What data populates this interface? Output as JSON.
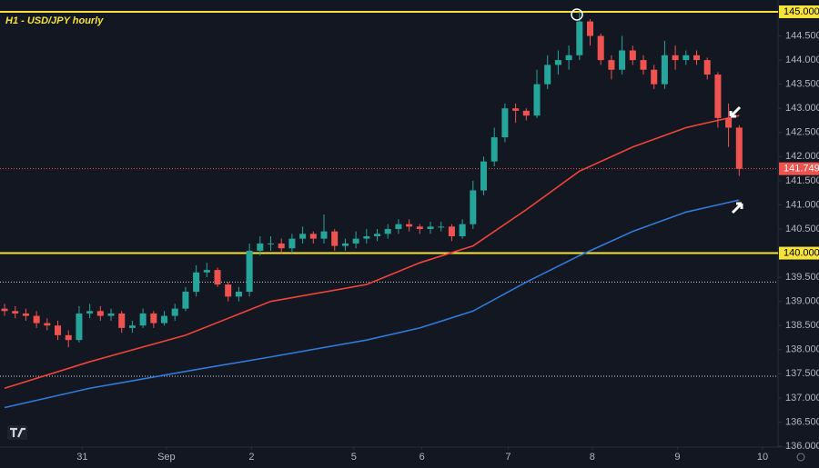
{
  "chart_data": {
    "type": "candlestick",
    "title": "H1 - USD/JPY hourly",
    "colors": {
      "up": "#26a69a",
      "down": "#ef5350",
      "background": "#131722",
      "axis_text": "#b2b5be"
    },
    "xlim": [
      -0.43,
      72.65
    ],
    "xticks": [
      {
        "value": 7.3,
        "label": "31"
      },
      {
        "value": 15.2,
        "label": "Sep"
      },
      {
        "value": 23.2,
        "label": "2"
      },
      {
        "value": 32.8,
        "label": "5"
      },
      {
        "value": 39.2,
        "label": "6"
      },
      {
        "value": 47.3,
        "label": "7"
      },
      {
        "value": 55.2,
        "label": "8"
      },
      {
        "value": 63.2,
        "label": "9"
      },
      {
        "value": 71.2,
        "label": "10"
      }
    ],
    "ylim": [
      136,
      145
    ],
    "yticks": [
      {
        "value": 136,
        "label": "136.000"
      },
      {
        "value": 136.5,
        "label": "136.500"
      },
      {
        "value": 137,
        "label": "137.000"
      },
      {
        "value": 137.5,
        "label": "137.500"
      },
      {
        "value": 138,
        "label": "138.000"
      },
      {
        "value": 138.5,
        "label": "138.500"
      },
      {
        "value": 139,
        "label": "139.000"
      },
      {
        "value": 139.5,
        "label": "139.500"
      },
      {
        "value": 140,
        "label": "140.000"
      },
      {
        "value": 140.5,
        "label": "140.500"
      },
      {
        "value": 141,
        "label": "141.000"
      },
      {
        "value": 141.5,
        "label": "141.500"
      },
      {
        "value": 142,
        "label": "142.000"
      },
      {
        "value": 142.5,
        "label": "142.500"
      },
      {
        "value": 143,
        "label": "143.000"
      },
      {
        "value": 143.5,
        "label": "143.500"
      },
      {
        "value": 144,
        "label": "144.000"
      },
      {
        "value": 144.5,
        "label": "144.500"
      },
      {
        "value": 145,
        "label": "145.000"
      }
    ],
    "open": [
      138.85,
      138.8,
      138.75,
      138.7,
      138.55,
      138.5,
      138.3,
      138.2,
      138.75,
      138.8,
      138.7,
      138.75,
      138.45,
      138.5,
      138.75,
      138.55,
      138.7,
      138.85,
      139.2,
      139.6,
      139.65,
      139.35,
      139.1,
      139.2,
      140.05,
      140.2,
      140.2,
      140.1,
      140.3,
      140.4,
      140.3,
      140.45,
      140.15,
      140.2,
      140.3,
      140.35,
      140.4,
      140.5,
      140.6,
      140.55,
      140.5,
      140.55,
      140.55,
      140.35,
      140.6,
      141.3,
      141.9,
      142.4,
      143.0,
      142.95,
      142.85,
      143.5,
      143.9,
      144.0,
      144.1,
      144.8,
      144.5,
      144.0,
      143.8,
      144.2,
      144.0,
      143.8,
      143.5,
      144.1,
      144.0,
      144.1,
      144.0,
      143.7,
      142.8,
      142.6
    ],
    "high": [
      138.95,
      138.9,
      138.85,
      138.8,
      138.65,
      138.6,
      138.4,
      138.9,
      138.95,
      138.9,
      138.85,
      138.8,
      138.6,
      138.85,
      138.8,
      138.8,
      138.95,
      139.3,
      139.75,
      139.8,
      139.7,
      139.4,
      139.3,
      140.2,
      140.35,
      140.35,
      140.3,
      140.4,
      140.55,
      140.45,
      140.8,
      140.5,
      140.3,
      140.45,
      140.5,
      140.5,
      140.6,
      140.7,
      140.7,
      140.6,
      140.65,
      140.65,
      140.6,
      140.7,
      141.5,
      142.0,
      142.6,
      143.1,
      143.1,
      143.0,
      143.8,
      144.1,
      144.2,
      144.3,
      145.0,
      144.85,
      144.55,
      144.1,
      144.5,
      144.3,
      144.1,
      143.9,
      144.4,
      144.3,
      144.2,
      144.2,
      144.05,
      143.75,
      143.1,
      142.65
    ],
    "low": [
      138.7,
      138.65,
      138.6,
      138.45,
      138.4,
      138.2,
      138.05,
      138.15,
      138.65,
      138.6,
      138.6,
      138.35,
      138.35,
      138.45,
      138.45,
      138.5,
      138.6,
      138.8,
      139.1,
      139.5,
      139.3,
      139.0,
      139.0,
      139.1,
      139.95,
      140.05,
      140.0,
      140.0,
      140.2,
      140.2,
      140.2,
      140.05,
      140.05,
      140.1,
      140.2,
      140.25,
      140.3,
      140.4,
      140.45,
      140.4,
      140.4,
      140.45,
      140.25,
      140.3,
      140.5,
      141.2,
      141.8,
      142.3,
      142.7,
      142.75,
      142.8,
      143.4,
      143.7,
      143.8,
      144.0,
      144.3,
      143.9,
      143.6,
      143.7,
      143.9,
      143.7,
      143.4,
      143.4,
      143.8,
      143.9,
      143.9,
      143.6,
      142.6,
      142.2,
      141.6
    ],
    "close": [
      138.8,
      138.75,
      138.7,
      138.55,
      138.5,
      138.3,
      138.2,
      138.75,
      138.8,
      138.7,
      138.75,
      138.45,
      138.5,
      138.75,
      138.55,
      138.7,
      138.85,
      139.2,
      139.6,
      139.65,
      139.35,
      139.1,
      139.2,
      140.05,
      140.2,
      140.2,
      140.1,
      140.3,
      140.4,
      140.3,
      140.45,
      140.15,
      140.2,
      140.3,
      140.35,
      140.4,
      140.5,
      140.6,
      140.55,
      140.5,
      140.55,
      140.55,
      140.35,
      140.6,
      141.3,
      141.9,
      142.4,
      143.0,
      142.95,
      142.85,
      143.5,
      143.9,
      144.0,
      144.1,
      144.8,
      144.5,
      144.0,
      143.8,
      144.2,
      144.0,
      143.8,
      143.5,
      144.1,
      144.0,
      144.1,
      144.0,
      143.7,
      142.8,
      142.6,
      141.749
    ],
    "lines": [
      {
        "color": "#f0443a",
        "x": [
          0,
          8,
          17,
          25,
          34,
          39,
          44,
          49,
          54,
          59,
          64,
          69
        ],
        "values": [
          137.2,
          137.75,
          138.3,
          139.0,
          139.35,
          139.8,
          140.15,
          140.9,
          141.7,
          142.2,
          142.6,
          142.85
        ]
      },
      {
        "color": "#2f7bd8",
        "x": [
          0,
          8,
          17,
          25,
          34,
          39,
          44,
          49,
          54,
          59,
          64,
          69
        ],
        "values": [
          136.8,
          137.2,
          137.55,
          137.85,
          138.2,
          138.45,
          138.8,
          139.4,
          139.95,
          140.45,
          140.85,
          141.1
        ]
      }
    ],
    "levels": [
      {
        "value": 145,
        "label": "145.000",
        "color": "#f5e33b",
        "style": "solid"
      },
      {
        "value": 140,
        "label": "140.000",
        "color": "#f5e33b",
        "style": "solid"
      },
      {
        "value": 141.749,
        "label": "141.749",
        "color": "#ef5350",
        "style": "dotted"
      },
      {
        "value": 139.4,
        "color": "#d0d3da",
        "style": "dotted"
      },
      {
        "value": 137.45,
        "color": "#d0d3da",
        "style": "dotted"
      }
    ]
  }
}
